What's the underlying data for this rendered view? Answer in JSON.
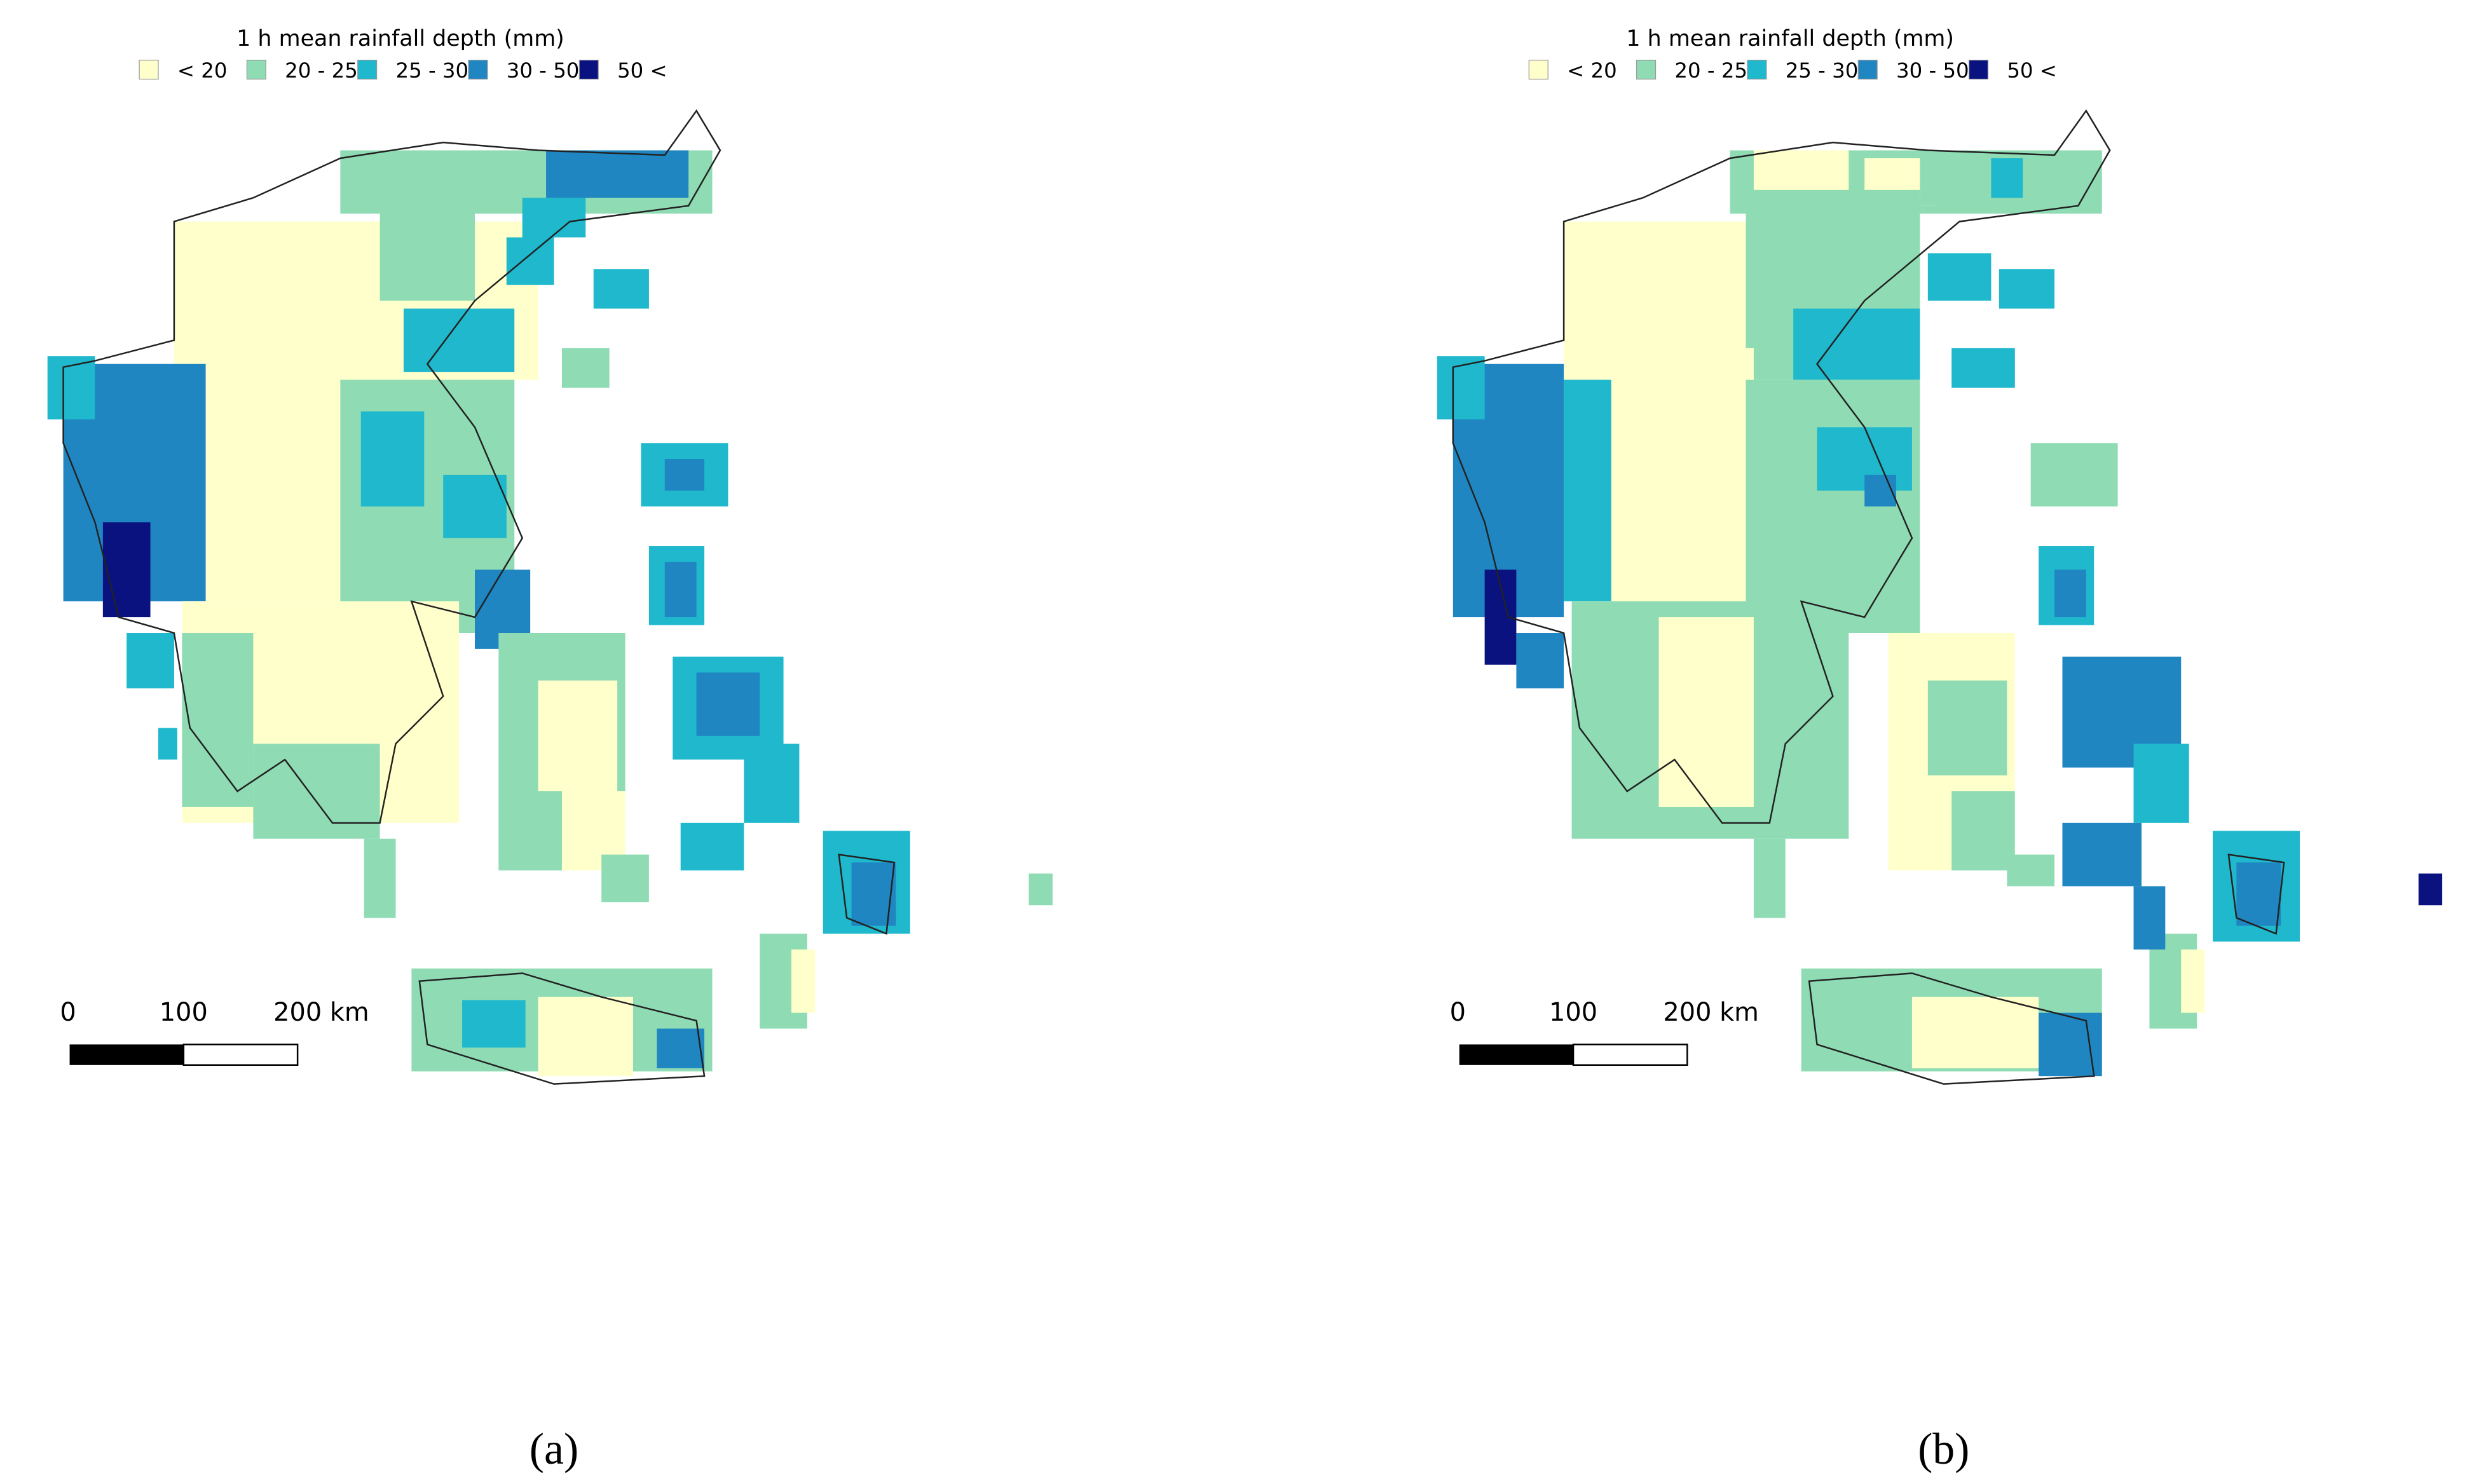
{
  "panels": [
    {
      "legend": {
        "title": "1 h mean rainfall depth (mm)",
        "items": [
          {
            "label": "< 20",
            "color": "#ffffcc"
          },
          {
            "label": "20 - 25",
            "color": "#8fdcb4"
          },
          {
            "label": "25 - 30",
            "color": "#1fb8cc"
          },
          {
            "label": "30 - 50",
            "color": "#1f86c2"
          },
          {
            "label": "50 <",
            "color": "#0a1280"
          }
        ]
      },
      "scale": {
        "labels": [
          "0",
          "100",
          "200 km"
        ]
      },
      "caption": "(a)"
    },
    {
      "legend": {
        "title": "1 h mean rainfall depth (mm)",
        "items": [
          {
            "label": "< 20",
            "color": "#ffffcc"
          },
          {
            "label": "20 - 25",
            "color": "#8fdcb4"
          },
          {
            "label": "25 - 30",
            "color": "#1fb8cc"
          },
          {
            "label": "30 - 50",
            "color": "#1f86c2"
          },
          {
            "label": "50 <",
            "color": "#0a1280"
          }
        ]
      },
      "scale": {
        "labels": [
          "0",
          "100",
          "200 km"
        ]
      },
      "caption": "(b)"
    }
  ]
}
